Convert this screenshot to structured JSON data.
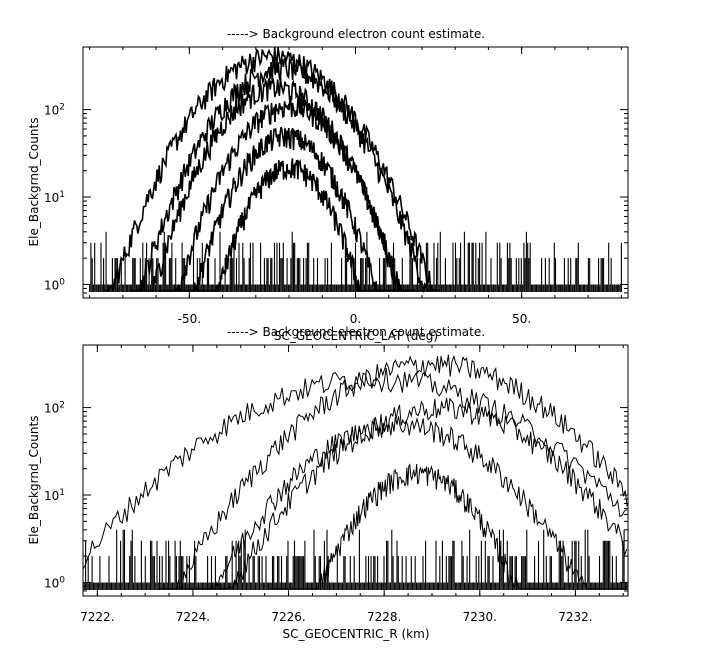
{
  "chart_data": [
    {
      "type": "line",
      "title": "-----> Background electron count estimate.",
      "xlabel": "SC_GEOCENTRIC_LAT (deg)",
      "ylabel": "Ele_Backgrnd_Counts",
      "xlim": [
        -82,
        82
      ],
      "ylim": [
        0.7,
        520
      ],
      "yscale": "log",
      "grid": false,
      "x_ticks": [
        {
          "value": -50,
          "label": "-50."
        },
        {
          "value": 0,
          "label": "0."
        },
        {
          "value": 50,
          "label": "50."
        }
      ],
      "y_ticks": [
        {
          "value": 1,
          "base": "10",
          "exp": "0"
        },
        {
          "value": 10,
          "base": "10",
          "exp": "1"
        },
        {
          "value": 100,
          "base": "10",
          "exp": "2"
        }
      ],
      "series": [
        {
          "center": -25,
          "width": 23,
          "peak": 410
        },
        {
          "center": -22,
          "width": 21,
          "peak": 300
        },
        {
          "center": -24,
          "width": 19,
          "peak": 180
        },
        {
          "center": -20,
          "width": 18,
          "peak": 110
        },
        {
          "center": -21,
          "width": 16,
          "peak": 50
        },
        {
          "center": -20,
          "width": 14,
          "peak": 22
        }
      ]
    },
    {
      "type": "line",
      "title": "-----> Background electron count estimate.",
      "xlabel": "SC_GEOCENTRIC_R (km)",
      "ylabel": "Ele_Backgrnd_Counts",
      "xlim": [
        7221.7,
        7233.1
      ],
      "ylim": [
        0.7,
        520
      ],
      "yscale": "log",
      "grid": false,
      "x_ticks": [
        {
          "value": 7222,
          "label": "7222."
        },
        {
          "value": 7224,
          "label": "7224."
        },
        {
          "value": 7226,
          "label": "7226."
        },
        {
          "value": 7228,
          "label": "7228."
        },
        {
          "value": 7230,
          "label": "7230."
        },
        {
          "value": 7232,
          "label": "7232."
        }
      ],
      "y_ticks": [
        {
          "value": 1,
          "base": "10",
          "exp": "0"
        },
        {
          "value": 10,
          "base": "10",
          "exp": "1"
        },
        {
          "value": 100,
          "base": "10",
          "exp": "2"
        }
      ],
      "series": [
        {
          "center": 7229.0,
          "width": 2.6,
          "peak": 320
        },
        {
          "center": 7227.8,
          "width": 3.3,
          "peak": 220
        },
        {
          "center": 7229.2,
          "width": 2.4,
          "peak": 100
        },
        {
          "center": 7228.3,
          "width": 2.2,
          "peak": 65
        },
        {
          "center": 7228.7,
          "width": 1.4,
          "peak": 18
        }
      ]
    }
  ]
}
